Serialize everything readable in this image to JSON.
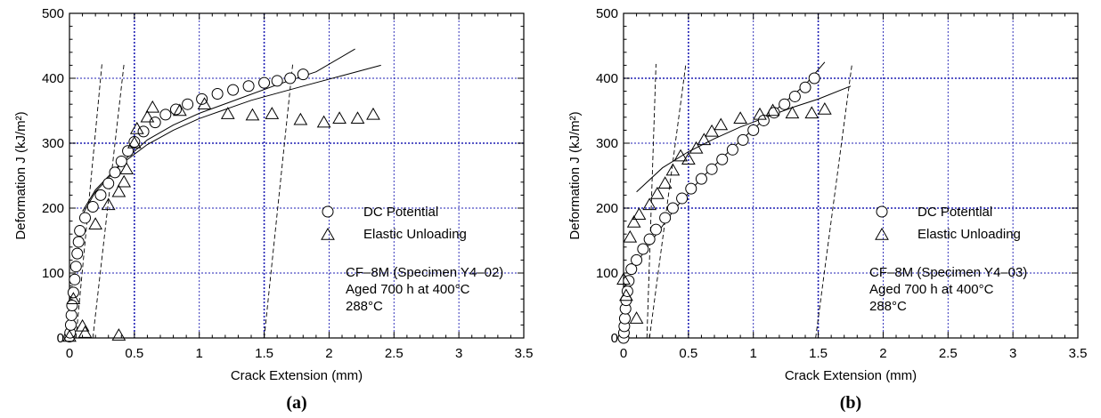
{
  "chart_data": [
    {
      "type": "scatter",
      "panel_label": "(a)",
      "xlabel": "Crack Extension (mm)",
      "ylabel": "Deformation J (kJ/m²)",
      "xlim": [
        0,
        3.5
      ],
      "ylim": [
        0,
        500
      ],
      "x_ticks": [
        "0",
        "0.5",
        "1",
        "1.5",
        "2",
        "2.5",
        "3",
        "3.5"
      ],
      "y_ticks": [
        "0",
        "100",
        "200",
        "300",
        "400",
        "500"
      ],
      "grid": true,
      "legend": {
        "placement": "center-right",
        "entries": [
          {
            "label": "DC Potential",
            "marker": "circle"
          },
          {
            "label": "Elastic Unloading",
            "marker": "triangle"
          }
        ]
      },
      "annotation": [
        "CF–8M (Specimen Y4–02)",
        "Aged 700 h at 400°C",
        "288°C"
      ],
      "series": [
        {
          "name": "DC Potential",
          "marker": "circle",
          "points": [
            [
              0,
              2
            ],
            [
              0.005,
              8
            ],
            [
              0.01,
              20
            ],
            [
              0.015,
              35
            ],
            [
              0.02,
              50
            ],
            [
              0.03,
              70
            ],
            [
              0.04,
              90
            ],
            [
              0.05,
              110
            ],
            [
              0.06,
              130
            ],
            [
              0.07,
              148
            ],
            [
              0.08,
              165
            ],
            [
              0.12,
              185
            ],
            [
              0.18,
              202
            ],
            [
              0.24,
              220
            ],
            [
              0.3,
              238
            ],
            [
              0.35,
              255
            ],
            [
              0.4,
              272
            ],
            [
              0.45,
              288
            ],
            [
              0.5,
              302
            ],
            [
              0.57,
              318
            ],
            [
              0.66,
              332
            ],
            [
              0.74,
              344
            ],
            [
              0.82,
              352
            ],
            [
              0.91,
              360
            ],
            [
              1.02,
              368
            ],
            [
              1.14,
              376
            ],
            [
              1.26,
              382
            ],
            [
              1.38,
              388
            ],
            [
              1.5,
              393
            ],
            [
              1.6,
              396
            ],
            [
              1.7,
              400
            ],
            [
              1.8,
              406
            ]
          ]
        },
        {
          "name": "Elastic Unloading",
          "marker": "triangle",
          "points": [
            [
              0,
              2
            ],
            [
              0.03,
              60
            ],
            [
              0.1,
              18
            ],
            [
              0.12,
              8
            ],
            [
              0.38,
              4
            ],
            [
              0.2,
              175
            ],
            [
              0.3,
              205
            ],
            [
              0.38,
              225
            ],
            [
              0.42,
              240
            ],
            [
              0.44,
              260
            ],
            [
              0.5,
              300
            ],
            [
              0.52,
              322
            ],
            [
              0.6,
              340
            ],
            [
              0.64,
              355
            ],
            [
              0.85,
              350
            ],
            [
              1.04,
              360
            ],
            [
              1.22,
              345
            ],
            [
              1.41,
              343
            ],
            [
              1.56,
              345
            ],
            [
              1.78,
              336
            ],
            [
              1.96,
              332
            ],
            [
              2.08,
              338
            ],
            [
              2.22,
              338
            ],
            [
              2.34,
              344
            ]
          ]
        }
      ],
      "fit_curves": [
        [
          [
            0.1,
            195
          ],
          [
            0.2,
            228
          ],
          [
            0.4,
            270
          ],
          [
            0.6,
            305
          ],
          [
            0.8,
            328
          ],
          [
            1.0,
            346
          ],
          [
            1.3,
            368
          ],
          [
            1.6,
            390
          ],
          [
            1.9,
            410
          ],
          [
            2.2,
            445
          ]
        ],
        [
          [
            0.1,
            190
          ],
          [
            0.2,
            225
          ],
          [
            0.4,
            268
          ],
          [
            0.6,
            298
          ],
          [
            0.8,
            320
          ],
          [
            1.0,
            338
          ],
          [
            1.4,
            366
          ],
          [
            1.8,
            388
          ],
          [
            2.1,
            404
          ],
          [
            2.4,
            420
          ]
        ]
      ],
      "blunting_lines": [
        [
          [
            0.05,
            0
          ],
          [
            0.25,
            422
          ]
        ],
        [
          [
            0.18,
            0
          ],
          [
            0.42,
            422
          ]
        ],
        [
          [
            1.5,
            0
          ],
          [
            1.72,
            422
          ]
        ]
      ]
    },
    {
      "type": "scatter",
      "panel_label": "(b)",
      "xlabel": "Crack Extension (mm)",
      "ylabel": "Deformation J (kJ/m²)",
      "xlim": [
        0,
        3.5
      ],
      "ylim": [
        0,
        500
      ],
      "x_ticks": [
        "0",
        "0.5",
        "1",
        "1.5",
        "2",
        "2.5",
        "3",
        "3.5"
      ],
      "y_ticks": [
        "0",
        "100",
        "200",
        "300",
        "400",
        "500"
      ],
      "grid": true,
      "legend": {
        "placement": "center-right",
        "entries": [
          {
            "label": "DC Potential",
            "marker": "circle"
          },
          {
            "label": "Elastic Unloading",
            "marker": "triangle"
          }
        ]
      },
      "annotation": [
        "CF–8M (Specimen Y4–03)",
        "Aged 700 h at 400°C",
        "288°C"
      ],
      "series": [
        {
          "name": "DC Potential",
          "marker": "circle",
          "points": [
            [
              0,
              0
            ],
            [
              0.003,
              8
            ],
            [
              0.006,
              18
            ],
            [
              0.01,
              30
            ],
            [
              0.015,
              45
            ],
            [
              0.02,
              58
            ],
            [
              0.03,
              72
            ],
            [
              0.04,
              88
            ],
            [
              0.06,
              106
            ],
            [
              0.1,
              120
            ],
            [
              0.15,
              137
            ],
            [
              0.2,
              152
            ],
            [
              0.25,
              167
            ],
            [
              0.32,
              185
            ],
            [
              0.38,
              200
            ],
            [
              0.45,
              215
            ],
            [
              0.52,
              230
            ],
            [
              0.6,
              245
            ],
            [
              0.68,
              260
            ],
            [
              0.76,
              275
            ],
            [
              0.84,
              290
            ],
            [
              0.92,
              305
            ],
            [
              1.0,
              320
            ],
            [
              1.08,
              335
            ],
            [
              1.16,
              347
            ],
            [
              1.24,
              360
            ],
            [
              1.32,
              372
            ],
            [
              1.4,
              386
            ],
            [
              1.47,
              400
            ]
          ]
        },
        {
          "name": "Elastic Unloading",
          "marker": "triangle",
          "points": [
            [
              0,
              90
            ],
            [
              0.02,
              65
            ],
            [
              0.05,
              155
            ],
            [
              0.08,
              178
            ],
            [
              0.1,
              30
            ],
            [
              0.12,
              190
            ],
            [
              0.2,
              205
            ],
            [
              0.26,
              222
            ],
            [
              0.32,
              238
            ],
            [
              0.38,
              258
            ],
            [
              0.44,
              280
            ],
            [
              0.5,
              275
            ],
            [
              0.56,
              292
            ],
            [
              0.62,
              305
            ],
            [
              0.68,
              318
            ],
            [
              0.75,
              328
            ],
            [
              0.9,
              338
            ],
            [
              1.05,
              344
            ],
            [
              1.15,
              350
            ],
            [
              1.3,
              346
            ],
            [
              1.45,
              346
            ],
            [
              1.55,
              352
            ]
          ]
        }
      ],
      "fit_curves": [
        [
          [
            0.05,
            100
          ],
          [
            0.2,
            145
          ],
          [
            0.4,
            200
          ],
          [
            0.6,
            246
          ],
          [
            0.8,
            285
          ],
          [
            1.0,
            322
          ],
          [
            1.2,
            356
          ],
          [
            1.4,
            390
          ],
          [
            1.55,
            425
          ]
        ],
        [
          [
            0.1,
            225
          ],
          [
            0.3,
            262
          ],
          [
            0.5,
            287
          ],
          [
            0.7,
            307
          ],
          [
            0.9,
            325
          ],
          [
            1.1,
            340
          ],
          [
            1.3,
            355
          ],
          [
            1.5,
            368
          ],
          [
            1.75,
            388
          ]
        ]
      ],
      "blunting_lines": [
        [
          [
            0.18,
            0
          ],
          [
            0.25,
            422
          ]
        ],
        [
          [
            0.2,
            0
          ],
          [
            0.48,
            422
          ]
        ],
        [
          [
            1.48,
            0
          ],
          [
            1.76,
            422
          ]
        ]
      ]
    }
  ]
}
